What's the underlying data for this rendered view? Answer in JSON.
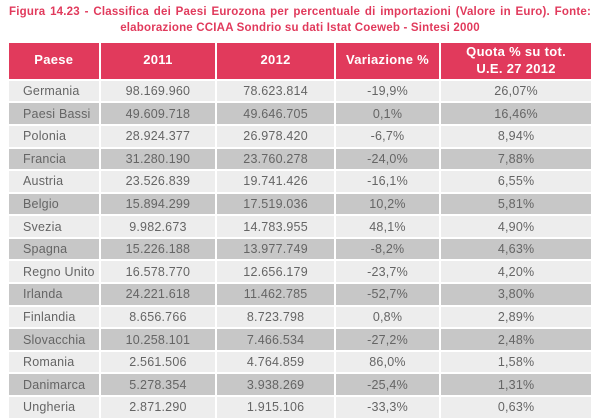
{
  "title": {
    "line1": "Figura 14.23 - Classifica dei Paesi Eurozona per percentuale di importazioni (Valore in Euro). Fonte:",
    "line2": "elaborazione CCIAA Sondrio su dati Istat Coeweb - Sintesi 2000"
  },
  "colors": {
    "accent": "#e13a5c",
    "row_light": "#ededed",
    "row_dark": "#c7c7c7",
    "text": "#656565",
    "header_text": "#ffffff"
  },
  "table": {
    "display_headers": [
      "Paese",
      "2011",
      "2012",
      "Variazione %",
      "Quota % su tot.\nU.E. 27 2012"
    ]
  },
  "chart_data": {
    "type": "table",
    "title": "Figura 14.23 - Classifica dei Paesi Eurozona per percentuale di importazioni (Valore in Euro). Fonte: elaborazione CCIAA Sondrio su dati Istat Coeweb - Sintesi 2000",
    "columns": [
      "Paese",
      "2011",
      "2012",
      "Variazione %",
      "Quota % su tot. U.E. 27 2012"
    ],
    "rows": [
      [
        "Germania",
        "98.169.960",
        "78.623.814",
        "-19,9%",
        "26,07%"
      ],
      [
        "Paesi Bassi",
        "49.609.718",
        "49.646.705",
        "0,1%",
        "16,46%"
      ],
      [
        "Polonia",
        "28.924.377",
        "26.978.420",
        "-6,7%",
        "8,94%"
      ],
      [
        "Francia",
        "31.280.190",
        "23.760.278",
        "-24,0%",
        "7,88%"
      ],
      [
        "Austria",
        "23.526.839",
        "19.741.426",
        "-16,1%",
        "6,55%"
      ],
      [
        "Belgio",
        "15.894.299",
        "17.519.036",
        "10,2%",
        "5,81%"
      ],
      [
        "Svezia",
        "9.982.673",
        "14.783.955",
        "48,1%",
        "4,90%"
      ],
      [
        "Spagna",
        "15.226.188",
        "13.977.749",
        "-8,2%",
        "4,63%"
      ],
      [
        "Regno Unito",
        "16.578.770",
        "12.656.179",
        "-23,7%",
        "4,20%"
      ],
      [
        "Irlanda",
        "24.221.618",
        "11.462.785",
        "-52,7%",
        "3,80%"
      ],
      [
        "Finlandia",
        "8.656.766",
        "8.723.798",
        "0,8%",
        "2,89%"
      ],
      [
        "Slovacchia",
        "10.258.101",
        "7.466.534",
        "-27,2%",
        "2,48%"
      ],
      [
        "Romania",
        "2.561.506",
        "4.764.859",
        "86,0%",
        "1,58%"
      ],
      [
        "Danimarca",
        "5.278.354",
        "3.938.269",
        "-25,4%",
        "1,31%"
      ],
      [
        "Ungheria",
        "2.871.290",
        "1.915.106",
        "-33,3%",
        "0,63%"
      ]
    ]
  }
}
